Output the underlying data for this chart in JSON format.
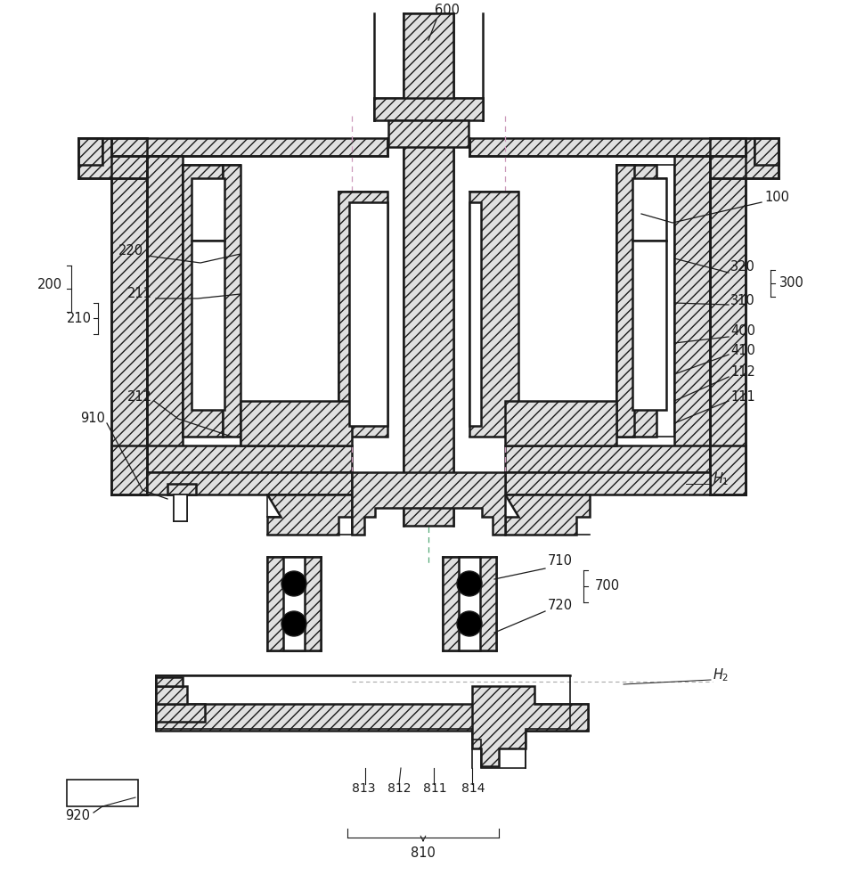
{
  "bg_color": "#ffffff",
  "line_color": "#1a1a1a",
  "hatch_color": "#888888",
  "label_color": "#1a1a1a",
  "dash_pink": "#cc99bb",
  "dash_green": "#55aa77",
  "lw_main": 1.8,
  "lw_thin": 1.2,
  "hatch_dense": "///",
  "font_size": 10.5
}
